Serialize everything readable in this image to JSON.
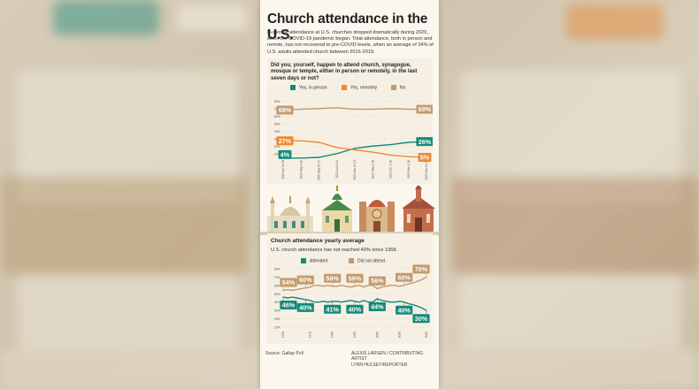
{
  "title": "Church attendance in the U.S.",
  "intro": "In-person attendance at U.S. churches dropped dramatically during 2020, when the COVID-19 pandemic began. Total attendance, both in person and remote, has not recovered to pre-COVID levels, when an average of 34% of U.S. adults attended church between 2016-2019.",
  "colors": {
    "teal": "#138a78",
    "orange": "#ef8a2e",
    "tan": "#c49a6c",
    "accent_green": "#1f8a78"
  },
  "chart_data": [
    {
      "type": "line",
      "title": "Did you, yourself, happen to attend church, synagogue, mosque or temple, either in person or remotely, in the last seven days or not?",
      "x": [
        "2020 Apr 14-28",
        "2020 May 4-10",
        "2020 May 13-17",
        "2020 Jun 8-14",
        "2021 Mar 15-21",
        "2021 May 3-18",
        "2021 Dec 1-16",
        "2022 Mar 1-16",
        "2022 Mar 14-18"
      ],
      "yticks": [
        "80%",
        "70%",
        "60%",
        "50%",
        "40%",
        "30%",
        "20%",
        "10%"
      ],
      "ylim": [
        5,
        85
      ],
      "series": [
        {
          "name": "Yes, in person",
          "color": "#138a78",
          "values": [
            4,
            4,
            5,
            10,
            17,
            20,
            22,
            25,
            26
          ]
        },
        {
          "name": "Yes, remotely",
          "color": "#ef8a2e",
          "values": [
            27,
            27,
            25,
            18,
            15,
            12,
            8,
            6,
            5
          ]
        },
        {
          "name": "No",
          "color": "#c49a6c",
          "values": [
            68,
            69,
            70,
            71,
            69,
            69,
            70,
            69,
            69
          ]
        }
      ],
      "labels": [
        {
          "text": "68%",
          "series": 2,
          "point": 0,
          "side": "start"
        },
        {
          "text": "69%",
          "series": 2,
          "point": 8,
          "side": "end"
        },
        {
          "text": "27%",
          "series": 1,
          "point": 0,
          "side": "start"
        },
        {
          "text": "5%",
          "series": 1,
          "point": 8,
          "side": "end"
        },
        {
          "text": "4%",
          "series": 0,
          "point": 0,
          "side": "start"
        },
        {
          "text": "26%",
          "series": 0,
          "point": 8,
          "side": "end"
        }
      ],
      "legend": "top"
    },
    {
      "type": "line",
      "title": "Church attendance yearly average",
      "subtitle": "U.S. church attendance has not reached 49% since 1958.",
      "x": [
        "1958",
        "1960",
        "1962",
        "1964",
        "1966",
        "1968",
        "1970",
        "1972",
        "1974",
        "1976",
        "1978",
        "1980",
        "1982",
        "1984",
        "1986",
        "1988",
        "1990",
        "1992",
        "1994",
        "1996",
        "1998",
        "2000",
        "2002",
        "2004",
        "2006",
        "2008",
        "2010",
        "2012",
        "2014",
        "2016",
        "2018",
        "2020",
        "2022"
      ],
      "xticks": [
        "1958",
        "1970",
        "1980",
        "1990",
        "2000",
        "2010",
        "2022"
      ],
      "yticks": [
        "80%",
        "70%",
        "60%",
        "50%",
        "40%",
        "30%",
        "20%",
        "10%"
      ],
      "ylim": [
        8,
        82
      ],
      "series": [
        {
          "name": "Attended",
          "color": "#138a78",
          "values": [
            46,
            45,
            46,
            45,
            44,
            43,
            42,
            40,
            40,
            41,
            40,
            41,
            41,
            40,
            41,
            42,
            41,
            40,
            42,
            40,
            40,
            44,
            42,
            41,
            40,
            40,
            41,
            40,
            38,
            37,
            35,
            33,
            30
          ]
        },
        {
          "name": "Did not attend",
          "color": "#c49a6c",
          "values": [
            54,
            55,
            54,
            55,
            56,
            57,
            58,
            60,
            60,
            59,
            60,
            59,
            59,
            60,
            59,
            58,
            59,
            60,
            58,
            60,
            60,
            56,
            58,
            59,
            60,
            60,
            59,
            60,
            62,
            63,
            65,
            67,
            70
          ]
        }
      ],
      "labels_top": [
        "54%",
        "60%",
        "59%",
        "59%",
        "56%",
        "60%",
        "70%"
      ],
      "labels_bottom": [
        "46%",
        "40%",
        "41%",
        "40%",
        "44%",
        "40%",
        "30%"
      ],
      "legend": "top"
    }
  ],
  "source": "Source: Gallup Poll",
  "credit_1": "ALEXIS LARSEN / CONTRIBUTING ARTIST",
  "credit_2": "LYNN HULSEY/REPORTER"
}
